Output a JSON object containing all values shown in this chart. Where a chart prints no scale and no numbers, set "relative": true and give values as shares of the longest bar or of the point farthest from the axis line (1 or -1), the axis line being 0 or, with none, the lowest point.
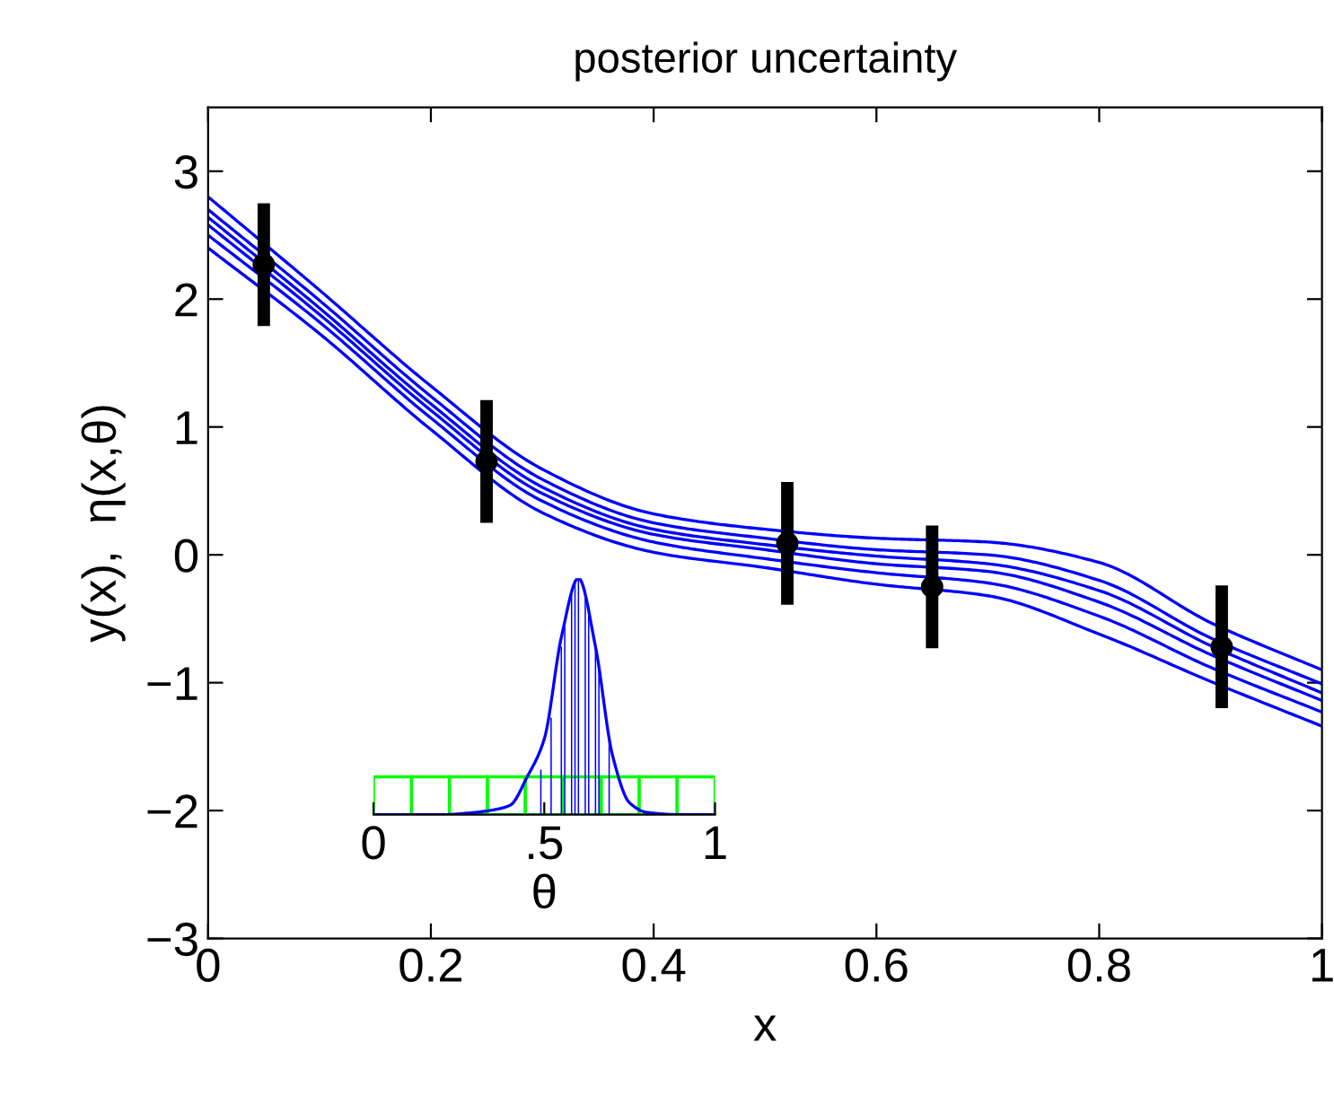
{
  "chart_data": [
    {
      "type": "line",
      "title": "posterior uncertainty",
      "xlabel": "x",
      "ylabel": "y(x),  η(x,θ)",
      "xlim": [
        0,
        1
      ],
      "ylim": [
        -3,
        3.5
      ],
      "xticks": [
        0,
        0.2,
        0.4,
        0.6,
        0.8,
        1
      ],
      "yticks": [
        -3,
        -2,
        -1,
        0,
        1,
        2,
        3
      ],
      "grid": false,
      "legend": false,
      "x": [
        0,
        0.1,
        0.2,
        0.3,
        0.4,
        0.5,
        0.6,
        0.7,
        0.8,
        0.9,
        1
      ],
      "series": [
        {
          "color": "#0000ff",
          "values": [
            2.8,
            2.07,
            1.32,
            0.67,
            0.32,
            0.2,
            0.13,
            0.1,
            -0.06,
            -0.53,
            -0.9
          ]
        },
        {
          "color": "#0000ff",
          "values": [
            2.7,
            1.99,
            1.24,
            0.59,
            0.25,
            0.13,
            0.04,
            0.0,
            -0.2,
            -0.65,
            -1.01
          ]
        },
        {
          "color": "#0000ff",
          "values": [
            2.64,
            1.93,
            1.18,
            0.53,
            0.2,
            0.08,
            -0.01,
            -0.07,
            -0.28,
            -0.71,
            -1.08
          ]
        },
        {
          "color": "#0000ff",
          "values": [
            2.58,
            1.88,
            1.13,
            0.48,
            0.16,
            0.04,
            -0.07,
            -0.13,
            -0.37,
            -0.78,
            -1.14
          ]
        },
        {
          "color": "#0000ff",
          "values": [
            2.5,
            1.82,
            1.07,
            0.42,
            0.1,
            -0.03,
            -0.14,
            -0.22,
            -0.48,
            -0.88,
            -1.23
          ]
        },
        {
          "color": "#0000ff",
          "values": [
            2.4,
            1.73,
            0.98,
            0.33,
            0.02,
            -0.1,
            -0.23,
            -0.32,
            -0.62,
            -0.99,
            -1.34
          ]
        },
        {
          "type": "scatter",
          "color": "#000000",
          "marker": "circle",
          "x": [
            0.05,
            0.25,
            0.52,
            0.65,
            0.91
          ],
          "values": [
            2.27,
            0.73,
            0.09,
            -0.25,
            -0.72
          ],
          "errors": [
            0.48,
            0.48,
            0.48,
            0.48,
            0.48
          ]
        }
      ]
    },
    {
      "type": "line",
      "xlabel": "θ",
      "xlim": [
        0,
        1
      ],
      "xticks": [
        0,
        {
          "value": 0.5,
          "label": ".5"
        },
        1
      ],
      "relative": true,
      "tick_labels": "x",
      "grid": false,
      "legend": false,
      "series": [
        {
          "type": "bar",
          "color": "#00ff00",
          "x": [
            0.0556,
            0.1667,
            0.2778,
            0.3889,
            0.5,
            0.6111,
            0.7222,
            0.8333,
            0.9444
          ],
          "values": [
            0.16,
            0.16,
            0.16,
            0.16,
            0.16,
            0.16,
            0.16,
            0.16,
            0.16
          ]
        },
        {
          "color": "#0000ff",
          "x": [
            0,
            0.2,
            0.3,
            0.35,
            0.4,
            0.45,
            0.5,
            0.55,
            0.6,
            0.65,
            0.7,
            0.75,
            0.8,
            0.9,
            1
          ],
          "values": [
            0,
            0,
            0.01,
            0.02,
            0.04,
            0.16,
            0.32,
            0.75,
            1,
            0.71,
            0.25,
            0.05,
            0.01,
            0,
            0
          ]
        },
        {
          "type": "bar",
          "color": "#0000ff",
          "x": [
            0.49,
            0.52,
            0.55,
            0.56,
            0.58,
            0.59,
            0.6,
            0.62,
            0.63,
            0.65,
            0.66,
            0.69
          ],
          "values": [
            0.19,
            0.41,
            0.71,
            0.8,
            0.95,
            0.99,
            1,
            0.95,
            0.88,
            0.71,
            0.61,
            0.32
          ]
        }
      ]
    }
  ]
}
